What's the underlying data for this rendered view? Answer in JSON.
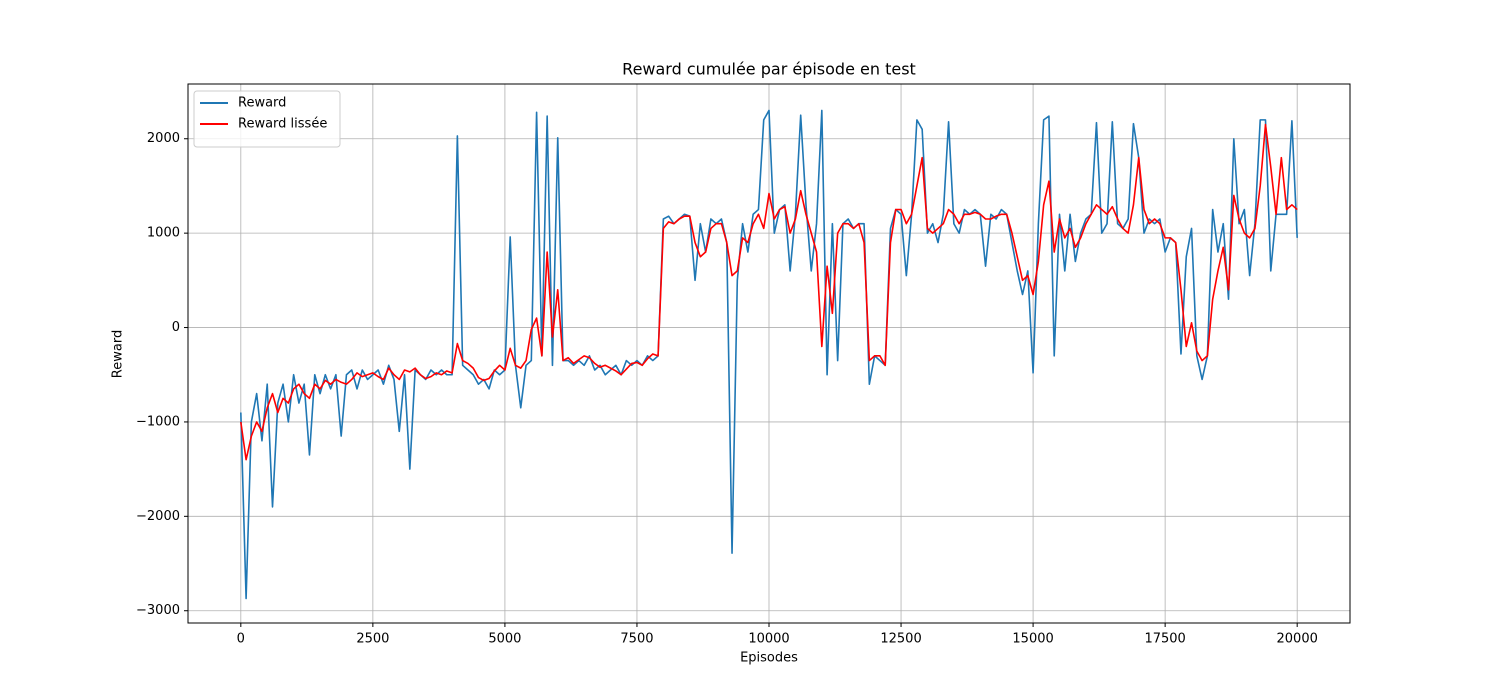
{
  "chart_data": {
    "type": "line",
    "title": "Reward cumulée par épisode en test",
    "xlabel": "Episodes",
    "ylabel": "Reward",
    "x": [
      0,
      100,
      200,
      300,
      400,
      500,
      600,
      700,
      800,
      900,
      1000,
      1100,
      1200,
      1300,
      1400,
      1500,
      1600,
      1700,
      1800,
      1900,
      2000,
      2100,
      2200,
      2300,
      2400,
      2500,
      2600,
      2700,
      2800,
      2900,
      3000,
      3100,
      3200,
      3300,
      3400,
      3500,
      3600,
      3700,
      3800,
      3900,
      4000,
      4100,
      4200,
      4300,
      4400,
      4500,
      4600,
      4700,
      4800,
      4900,
      5000,
      5100,
      5200,
      5300,
      5400,
      5500,
      5600,
      5700,
      5800,
      5900,
      6000,
      6100,
      6200,
      6300,
      6400,
      6500,
      6600,
      6700,
      6800,
      6900,
      7000,
      7100,
      7200,
      7300,
      7400,
      7500,
      7600,
      7700,
      7800,
      7900,
      8000,
      8100,
      8200,
      8300,
      8400,
      8500,
      8600,
      8700,
      8800,
      8900,
      9000,
      9100,
      9200,
      9300,
      9400,
      9500,
      9600,
      9700,
      9800,
      9900,
      10000,
      10100,
      10200,
      10300,
      10400,
      10500,
      10600,
      10700,
      10800,
      10900,
      11000,
      11100,
      11200,
      11300,
      11400,
      11500,
      11600,
      11700,
      11800,
      11900,
      12000,
      12100,
      12200,
      12300,
      12400,
      12500,
      12600,
      12700,
      12800,
      12900,
      13000,
      13100,
      13200,
      13300,
      13400,
      13500,
      13600,
      13700,
      13800,
      13900,
      14000,
      14100,
      14200,
      14300,
      14400,
      14500,
      14600,
      14700,
      14800,
      14900,
      15000,
      15100,
      15200,
      15300,
      15400,
      15500,
      15600,
      15700,
      15800,
      15900,
      16000,
      16100,
      16200,
      16300,
      16400,
      16500,
      16600,
      16700,
      16800,
      16900,
      17000,
      17100,
      17200,
      17300,
      17400,
      17500,
      17600,
      17700,
      17800,
      17900,
      18000,
      18100,
      18200,
      18300,
      18400,
      18500,
      18600,
      18700,
      18800,
      18900,
      19000,
      19100,
      19200,
      19300,
      19400,
      19500,
      19600,
      19700,
      19800,
      19900,
      20000
    ],
    "series": [
      {
        "name": "Reward",
        "color": "#1f77b4",
        "values": [
          -900,
          -2870,
          -1000,
          -700,
          -1200,
          -600,
          -1900,
          -800,
          -600,
          -1000,
          -500,
          -800,
          -600,
          -1350,
          -500,
          -700,
          -500,
          -650,
          -500,
          -1150,
          -500,
          -450,
          -650,
          -450,
          -550,
          -500,
          -450,
          -600,
          -400,
          -550,
          -1100,
          -500,
          -1500,
          -450,
          -500,
          -550,
          -450,
          -500,
          -450,
          -500,
          -500,
          2030,
          -400,
          -450,
          -500,
          -600,
          -550,
          -650,
          -450,
          -500,
          -450,
          960,
          -400,
          -850,
          -400,
          -350,
          2280,
          -300,
          2240,
          -400,
          2010,
          -350,
          -350,
          -400,
          -350,
          -400,
          -300,
          -450,
          -400,
          -500,
          -450,
          -400,
          -500,
          -350,
          -400,
          -350,
          -400,
          -300,
          -350,
          -300,
          1150,
          1180,
          1100,
          1150,
          1200,
          1180,
          500,
          1100,
          800,
          1150,
          1100,
          1150,
          900,
          -2390,
          500,
          1100,
          800,
          1200,
          1250,
          2200,
          2300,
          1000,
          1250,
          1300,
          600,
          1200,
          2250,
          1300,
          600,
          1100,
          2300,
          -500,
          1100,
          -350,
          1100,
          1150,
          1050,
          1100,
          1100,
          -600,
          -300,
          -350,
          -400,
          1050,
          1250,
          1200,
          550,
          1200,
          2200,
          2100,
          1000,
          1100,
          900,
          1200,
          2180,
          1100,
          1000,
          1250,
          1200,
          1250,
          1200,
          650,
          1200,
          1150,
          1250,
          1200,
          900,
          600,
          350,
          600,
          -480,
          1100,
          2200,
          2240,
          -300,
          1200,
          600,
          1200,
          700,
          1000,
          1150,
          1200,
          2170,
          1000,
          1100,
          2180,
          1100,
          1050,
          1150,
          2160,
          1800,
          1000,
          1150,
          1100,
          1150,
          800,
          950,
          900,
          -280,
          750,
          1050,
          -300,
          -550,
          -300,
          1250,
          800,
          1100,
          300,
          2000,
          1100,
          1250,
          550,
          1100,
          2200,
          2200,
          600,
          1200,
          1200,
          1200,
          2190,
          950
        ]
      },
      {
        "name": "Reward lissée",
        "color": "#ff0000",
        "values": [
          -1000,
          -1400,
          -1150,
          -1000,
          -1100,
          -850,
          -700,
          -900,
          -750,
          -800,
          -650,
          -600,
          -700,
          -750,
          -600,
          -650,
          -560,
          -600,
          -550,
          -580,
          -600,
          -550,
          -480,
          -520,
          -500,
          -480,
          -520,
          -550,
          -430,
          -500,
          -550,
          -450,
          -470,
          -430,
          -500,
          -540,
          -520,
          -480,
          -500,
          -460,
          -480,
          -170,
          -350,
          -380,
          -430,
          -530,
          -560,
          -540,
          -460,
          -400,
          -450,
          -220,
          -400,
          -430,
          -350,
          -20,
          100,
          -300,
          800,
          -100,
          400,
          -350,
          -320,
          -380,
          -340,
          -300,
          -320,
          -380,
          -420,
          -400,
          -430,
          -460,
          -500,
          -440,
          -380,
          -370,
          -400,
          -330,
          -280,
          -300,
          1050,
          1120,
          1100,
          1150,
          1180,
          1180,
          900,
          750,
          800,
          1050,
          1100,
          1100,
          900,
          550,
          600,
          950,
          900,
          1100,
          1200,
          1050,
          1420,
          1150,
          1250,
          1280,
          1000,
          1150,
          1450,
          1200,
          1000,
          800,
          -200,
          650,
          150,
          1000,
          1100,
          1100,
          1050,
          1100,
          900,
          -350,
          -300,
          -300,
          -400,
          900,
          1250,
          1250,
          1100,
          1200,
          1500,
          1800,
          1050,
          1000,
          1050,
          1100,
          1250,
          1200,
          1100,
          1200,
          1200,
          1220,
          1200,
          1150,
          1150,
          1180,
          1200,
          1200,
          1000,
          750,
          500,
          550,
          350,
          700,
          1300,
          1550,
          800,
          1150,
          950,
          1050,
          850,
          950,
          1100,
          1200,
          1300,
          1250,
          1200,
          1280,
          1150,
          1050,
          1000,
          1300,
          1800,
          1250,
          1100,
          1150,
          1100,
          950,
          950,
          900,
          400,
          -200,
          50,
          -250,
          -350,
          -300,
          300,
          600,
          850,
          400,
          1400,
          1150,
          1000,
          950,
          1050,
          1500,
          2150,
          1700,
          1200,
          1800,
          1250,
          1300,
          1250
        ]
      }
    ],
    "xlim": [
      -1000,
      21000
    ],
    "ylim": [
      -3130,
      2580
    ],
    "xticks": [
      0,
      2500,
      5000,
      7500,
      10000,
      12500,
      15000,
      17500,
      20000
    ],
    "yticks": [
      {
        "value": -3000,
        "label": "−3000"
      },
      {
        "value": -2000,
        "label": "−2000"
      },
      {
        "value": -1000,
        "label": "−1000"
      },
      0,
      1000,
      2000
    ],
    "grid": true,
    "legend": "upper left"
  }
}
